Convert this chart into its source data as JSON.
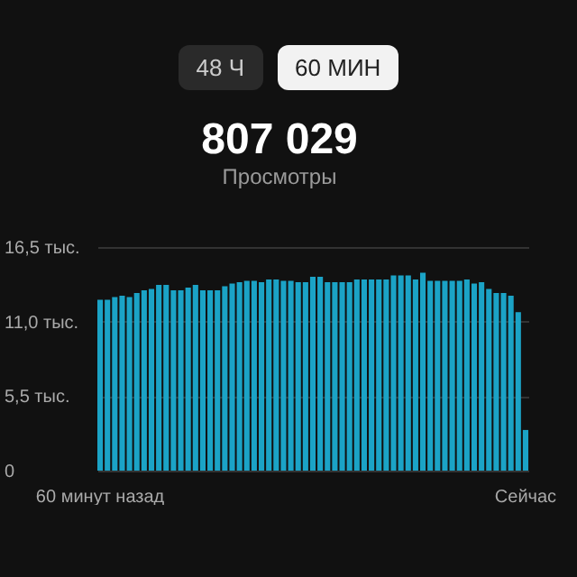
{
  "chart_data": {
    "type": "bar",
    "title": "807 029",
    "subtitle": "Просмотры",
    "annotations": [
      "48 Ч",
      "60 МИН"
    ],
    "categories": [
      "60 минут назад",
      null,
      null,
      null,
      null,
      null,
      null,
      null,
      null,
      null,
      null,
      null,
      null,
      null,
      null,
      null,
      null,
      null,
      null,
      null,
      null,
      null,
      null,
      null,
      null,
      null,
      null,
      null,
      null,
      null,
      null,
      null,
      null,
      null,
      null,
      null,
      null,
      null,
      null,
      null,
      null,
      null,
      null,
      null,
      null,
      null,
      null,
      null,
      null,
      null,
      null,
      null,
      null,
      null,
      null,
      null,
      null,
      null,
      "Сейчас"
    ],
    "values": [
      12.6,
      12.6,
      12.8,
      12.9,
      12.8,
      13.1,
      13.3,
      13.4,
      13.7,
      13.7,
      13.3,
      13.3,
      13.5,
      13.7,
      13.3,
      13.3,
      13.3,
      13.6,
      13.8,
      13.9,
      14.0,
      14.0,
      13.9,
      14.1,
      14.1,
      14.0,
      14.0,
      13.9,
      13.9,
      14.3,
      14.3,
      13.9,
      13.9,
      13.9,
      13.9,
      14.1,
      14.1,
      14.1,
      14.1,
      14.1,
      14.4,
      14.4,
      14.4,
      14.1,
      14.6,
      14.0,
      14.0,
      14.0,
      14.0,
      14.0,
      14.1,
      13.8,
      13.9,
      13.4,
      13.1,
      13.1,
      12.9,
      11.7,
      3.0
    ],
    "color": "#1ba3c6",
    "ylim": [
      0,
      16.5
    ],
    "yticks": [
      0,
      {
        "value": 5.5,
        "label": "5,5 тыс."
      },
      {
        "value": 11,
        "label": "11,0 тыс."
      },
      {
        "value": 16.5,
        "label": "16,5 тыс."
      }
    ],
    "grid": "y"
  }
}
